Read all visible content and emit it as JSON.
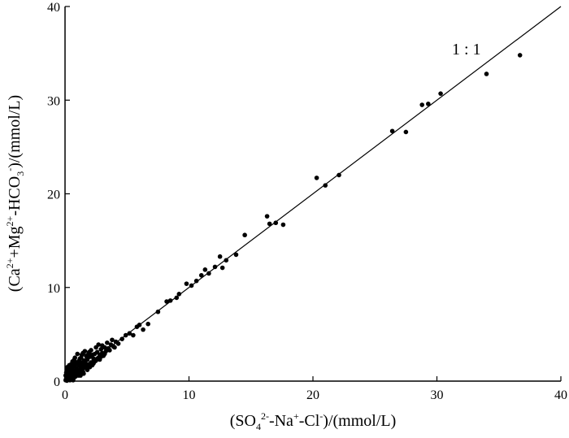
{
  "chart_data": {
    "type": "scatter",
    "xlim": [
      0,
      40
    ],
    "ylim": [
      0,
      40
    ],
    "x_ticks": [
      "0",
      "10",
      "20",
      "30",
      "40"
    ],
    "y_ticks": [
      "0",
      "10",
      "20",
      "30",
      "40"
    ],
    "xlabel": {
      "pre": "(SO",
      "sub1": "4",
      "sup1": "2-",
      "mid1": "-Na",
      "sup2": "+",
      "mid2": "-Cl",
      "sup3": "-",
      "post": ")/(mmol/L)"
    },
    "ylabel": {
      "pre": "(Ca",
      "sup1": "2+",
      "mid1": "+Mg",
      "sup2": "2+",
      "mid2": "-HCO",
      "sub1": "3",
      "sup3": "-",
      "post": ")/(mmol/L)"
    },
    "annotation": "1 : 1",
    "reference_line": {
      "from": [
        0,
        0
      ],
      "to": [
        40,
        40
      ]
    },
    "grid": false,
    "points": [
      [
        0.05,
        0.1
      ],
      [
        0.1,
        0.3
      ],
      [
        0.15,
        0.05
      ],
      [
        0.2,
        0.5
      ],
      [
        0.25,
        0.2
      ],
      [
        0.3,
        0.8
      ],
      [
        0.35,
        0.4
      ],
      [
        0.4,
        1.0
      ],
      [
        0.45,
        0.6
      ],
      [
        0.5,
        0.2
      ],
      [
        0.55,
        1.3
      ],
      [
        0.6,
        0.7
      ],
      [
        0.65,
        1.6
      ],
      [
        0.7,
        0.9
      ],
      [
        0.75,
        1.1
      ],
      [
        0.8,
        1.8
      ],
      [
        0.85,
        0.5
      ],
      [
        0.9,
        1.4
      ],
      [
        0.95,
        2.0
      ],
      [
        1.0,
        1.2
      ],
      [
        1.05,
        0.8
      ],
      [
        1.1,
        1.7
      ],
      [
        1.15,
        2.2
      ],
      [
        1.2,
        1.0
      ],
      [
        1.25,
        1.5
      ],
      [
        1.3,
        2.5
      ],
      [
        1.35,
        1.9
      ],
      [
        1.4,
        1.3
      ],
      [
        1.45,
        3.0
      ],
      [
        1.5,
        1.6
      ],
      [
        1.6,
        2.1
      ],
      [
        1.7,
        1.4
      ],
      [
        1.8,
        2.3
      ],
      [
        1.9,
        1.8
      ],
      [
        2.0,
        2.6
      ],
      [
        2.1,
        2.0
      ],
      [
        2.2,
        1.7
      ],
      [
        2.3,
        2.4
      ],
      [
        2.4,
        2.9
      ],
      [
        2.5,
        2.2
      ],
      [
        2.6,
        3.1
      ],
      [
        2.7,
        2.5
      ],
      [
        2.8,
        2.8
      ],
      [
        2.9,
        3.4
      ],
      [
        3.0,
        3.0
      ],
      [
        3.1,
        2.7
      ],
      [
        3.2,
        3.6
      ],
      [
        3.3,
        3.2
      ],
      [
        3.5,
        3.5
      ],
      [
        3.7,
        3.9
      ],
      [
        3.9,
        3.7
      ],
      [
        4.1,
        4.2
      ],
      [
        4.3,
        4.0
      ],
      [
        4.6,
        4.5
      ],
      [
        4.9,
        4.9
      ],
      [
        5.2,
        5.1
      ],
      [
        5.5,
        4.9
      ],
      [
        5.8,
        5.8
      ],
      [
        6.0,
        6.0
      ],
      [
        6.3,
        5.5
      ],
      [
        6.7,
        6.1
      ],
      [
        7.5,
        7.4
      ],
      [
        8.2,
        8.5
      ],
      [
        8.5,
        8.6
      ],
      [
        9.0,
        8.9
      ],
      [
        9.2,
        9.3
      ],
      [
        9.8,
        10.4
      ],
      [
        10.2,
        10.2
      ],
      [
        10.6,
        10.7
      ],
      [
        11.0,
        11.3
      ],
      [
        11.3,
        11.9
      ],
      [
        11.6,
        11.5
      ],
      [
        12.1,
        12.2
      ],
      [
        12.5,
        13.3
      ],
      [
        12.7,
        12.1
      ],
      [
        13.0,
        12.9
      ],
      [
        13.8,
        13.5
      ],
      [
        14.5,
        15.6
      ],
      [
        16.3,
        17.6
      ],
      [
        16.5,
        16.8
      ],
      [
        17.0,
        16.9
      ],
      [
        17.6,
        16.7
      ],
      [
        20.3,
        21.7
      ],
      [
        21.0,
        20.9
      ],
      [
        22.1,
        22.0
      ],
      [
        26.4,
        26.7
      ],
      [
        27.5,
        26.6
      ],
      [
        28.8,
        29.5
      ],
      [
        29.3,
        29.6
      ],
      [
        30.3,
        30.7
      ],
      [
        34.0,
        32.8
      ],
      [
        36.7,
        34.8
      ],
      [
        0.1,
        0.9
      ],
      [
        0.2,
        1.5
      ],
      [
        0.3,
        1.1
      ],
      [
        0.4,
        0.1
      ],
      [
        0.5,
        1.8
      ],
      [
        0.6,
        2.1
      ],
      [
        0.7,
        0.3
      ],
      [
        0.8,
        2.5
      ],
      [
        0.9,
        0.7
      ],
      [
        1.0,
        2.9
      ],
      [
        1.1,
        0.6
      ],
      [
        1.2,
        2.4
      ],
      [
        1.3,
        0.9
      ],
      [
        1.4,
        2.0
      ],
      [
        1.5,
        0.8
      ],
      [
        1.6,
        3.2
      ],
      [
        1.7,
        2.7
      ],
      [
        1.8,
        1.2
      ],
      [
        1.9,
        2.9
      ],
      [
        2.0,
        1.5
      ],
      [
        2.1,
        3.3
      ],
      [
        2.2,
        2.8
      ],
      [
        2.3,
        1.9
      ],
      [
        2.4,
        2.1
      ],
      [
        2.5,
        3.6
      ],
      [
        2.6,
        2.4
      ],
      [
        2.7,
        3.9
      ],
      [
        2.8,
        2.3
      ],
      [
        2.9,
        2.6
      ],
      [
        3.0,
        3.8
      ],
      [
        3.2,
        2.9
      ],
      [
        3.4,
        4.1
      ],
      [
        3.6,
        3.3
      ],
      [
        3.8,
        4.4
      ],
      [
        4.0,
        3.6
      ],
      [
        0.05,
        0.6
      ],
      [
        0.15,
        1.2
      ],
      [
        0.25,
        0.9
      ],
      [
        0.35,
        1.7
      ],
      [
        0.45,
        1.4
      ],
      [
        0.55,
        0.4
      ],
      [
        0.65,
        0.1
      ],
      [
        0.75,
        2.3
      ],
      [
        0.85,
        1.9
      ],
      [
        0.95,
        1.1
      ],
      [
        1.05,
        1.9
      ],
      [
        1.15,
        1.2
      ],
      [
        1.25,
        0.6
      ],
      [
        1.35,
        2.8
      ],
      [
        1.45,
        1.0
      ],
      [
        1.55,
        2.2
      ],
      [
        1.65,
        1.9
      ],
      [
        1.75,
        2.6
      ],
      [
        1.85,
        1.6
      ],
      [
        1.95,
        3.1
      ]
    ]
  }
}
